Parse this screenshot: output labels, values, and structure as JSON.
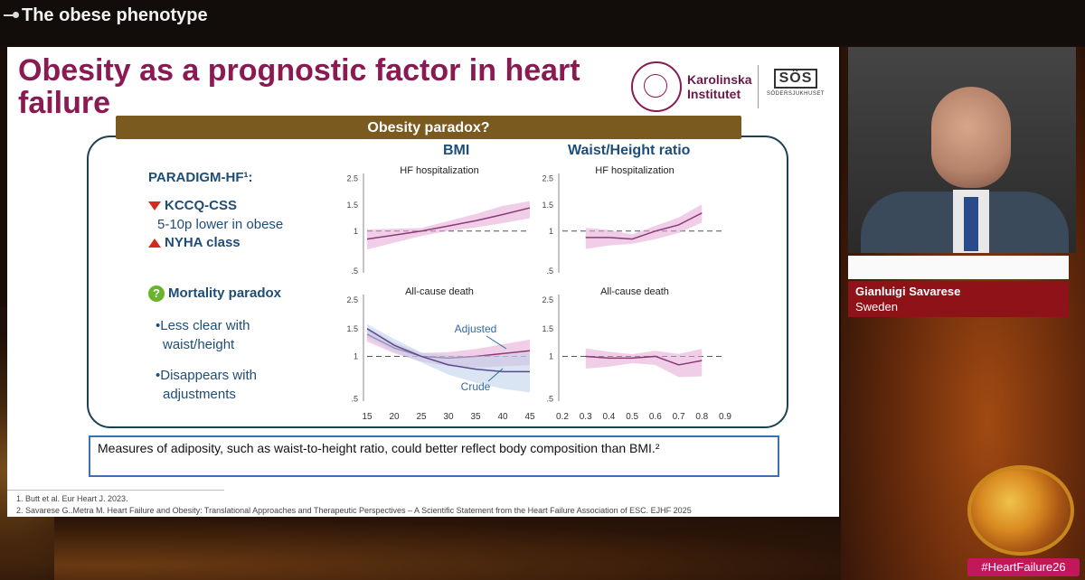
{
  "topbar": {
    "title": "The obese phenotype"
  },
  "slide": {
    "title": "Obesity as a prognostic factor in heart failure",
    "logos": {
      "ki": "Karolinska Institutet",
      "ki_line1": "Karolinska",
      "ki_line2": "Institutet",
      "sos": "SÖS",
      "sos_sub": "SÖDERSJUKHUSET"
    },
    "banner": "Obesity paradox?",
    "col_bmi": "BMI",
    "col_whr": "Waist/Height ratio",
    "left": {
      "paradigm": "PARADIGM-HF¹:",
      "kccq": "KCCQ-CSS",
      "kccq_detail": "5-10p lower in obese",
      "nyha": "NYHA class",
      "mortality": "Mortality paradox",
      "bullet1_line1": "•Less clear with",
      "bullet1_line2": "waist/height",
      "bullet2_line1": "•Disappears with",
      "bullet2_line2": "adjustments"
    },
    "note": "Measures of adiposity, such as waist-to-height ratio, could better reflect body composition than BMI.²",
    "footnotes": [
      "1.   Butt et al. Eur Heart J. 2023.",
      "2.   Savarese G..Metra M. Heart Failure and Obesity: Translational Approaches and Therapeutic Perspectives – A Scientific Statement from the Heart Failure Association of ESC. EJHF 2025"
    ]
  },
  "charts": {
    "hf_label": "HF hospitalization",
    "death_label": "All-cause death",
    "adjusted_label": "Adjusted",
    "crude_label": "Crude",
    "y_ticks": [
      "2.5",
      "1.5",
      "1",
      ".5"
    ],
    "bmi_x_ticks": [
      "15",
      "20",
      "25",
      "30",
      "35",
      "40",
      "45"
    ],
    "whr_x_ticks": [
      "0.2",
      "0.3",
      "0.4",
      "0.5",
      "0.6",
      "0.7",
      "0.8",
      "0.9"
    ]
  },
  "chart_data": [
    {
      "type": "line",
      "title": "HF hospitalization",
      "x": [
        15,
        20,
        25,
        30,
        35,
        40,
        45
      ],
      "series": [
        {
          "values": [
            0.9,
            0.95,
            1.0,
            1.1,
            1.2,
            1.32,
            1.45
          ]
        }
      ],
      "ylim": [
        0.5,
        2.5
      ]
    },
    {
      "type": "line",
      "title": "HF hospitalization",
      "x": [
        0.3,
        0.4,
        0.5,
        0.6,
        0.7,
        0.8
      ],
      "series": [
        {
          "values": [
            0.92,
            0.92,
            0.9,
            1.0,
            1.12,
            1.35
          ]
        }
      ],
      "ylim": [
        0.5,
        2.5
      ]
    },
    {
      "type": "line",
      "title": "All-cause death",
      "x": [
        15,
        20,
        25,
        30,
        35,
        40,
        45
      ],
      "series": [
        {
          "name": "Adjusted",
          "values": [
            1.4,
            1.15,
            1.0,
            0.98,
            1.0,
            1.05,
            1.1
          ]
        },
        {
          "name": "Crude",
          "values": [
            1.5,
            1.2,
            1.0,
            0.9,
            0.85,
            0.82,
            0.82
          ]
        }
      ],
      "ylim": [
        0.5,
        2.5
      ]
    },
    {
      "type": "line",
      "title": "All-cause death",
      "x": [
        0.3,
        0.4,
        0.5,
        0.6,
        0.7,
        0.8
      ],
      "series": [
        {
          "values": [
            1.0,
            0.98,
            0.98,
            1.0,
            0.9,
            0.95
          ]
        }
      ],
      "ylim": [
        0.5,
        2.5
      ]
    }
  ],
  "speaker": {
    "name": "Gianluigi Savarese",
    "country": "Sweden"
  },
  "hashtag": "#HeartFailure26",
  "colors": {
    "title": "#8b1a52",
    "panel_border": "#1b4156",
    "banner": "#7a5a1e",
    "plate": "#8e1218",
    "curve": "#8a3a78",
    "band": "#e6a6d6"
  }
}
